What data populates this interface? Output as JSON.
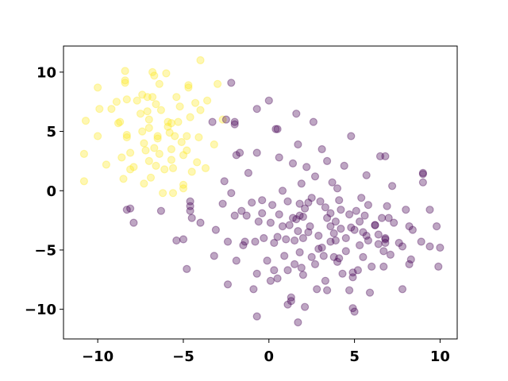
{
  "chart_data": {
    "type": "scatter",
    "title": "",
    "xlabel": "",
    "ylabel": "",
    "xlim": [
      -12,
      11
    ],
    "ylim": [
      -12.5,
      12.2
    ],
    "xticks": [
      -10,
      -5,
      0,
      5,
      10
    ],
    "yticks": [
      -10,
      -5,
      0,
      5,
      10
    ],
    "xtick_labels": [
      "−10",
      "−5",
      "0",
      "5",
      "10"
    ],
    "ytick_labels": [
      "−10",
      "−5",
      "0",
      "5",
      "10"
    ],
    "grid": false,
    "legend": "none",
    "marker_opacity": 0.35,
    "series": [
      {
        "color": "#fde725",
        "points": [
          [
            -10.7,
            5.9
          ],
          [
            -10.8,
            3.1
          ],
          [
            -10.8,
            0.8
          ],
          [
            -10.0,
            8.7
          ],
          [
            -9.9,
            6.9
          ],
          [
            -10.0,
            4.6
          ],
          [
            -9.5,
            2.2
          ],
          [
            -9.2,
            6.9
          ],
          [
            -8.9,
            7.5
          ],
          [
            -8.8,
            5.7
          ],
          [
            -8.7,
            5.8
          ],
          [
            -8.6,
            2.8
          ],
          [
            -8.5,
            1.0
          ],
          [
            -8.4,
            10.1
          ],
          [
            -8.4,
            9.1
          ],
          [
            -8.4,
            9.3
          ],
          [
            -8.3,
            7.7
          ],
          [
            -8.3,
            4.7
          ],
          [
            -8.3,
            4.5
          ],
          [
            -8.1,
            3.2
          ],
          [
            -8.1,
            1.8
          ],
          [
            -7.9,
            2.0
          ],
          [
            -7.7,
            7.6
          ],
          [
            -7.5,
            6.5
          ],
          [
            -7.4,
            8.1
          ],
          [
            -7.4,
            5.0
          ],
          [
            -7.3,
            4.0
          ],
          [
            -7.3,
            0.6
          ],
          [
            -7.2,
            3.4
          ],
          [
            -7.1,
            7.9
          ],
          [
            -7.1,
            6.7
          ],
          [
            -7.0,
            6.0
          ],
          [
            -7.0,
            5.3
          ],
          [
            -7.0,
            2.5
          ],
          [
            -6.9,
            1.1
          ],
          [
            -6.8,
            10.0
          ],
          [
            -6.8,
            7.9
          ],
          [
            -6.7,
            9.7
          ],
          [
            -6.7,
            3.6
          ],
          [
            -6.6,
            2.1
          ],
          [
            -6.6,
            7.3
          ],
          [
            -6.5,
            4.4
          ],
          [
            -6.5,
            4.6
          ],
          [
            -6.4,
            9.0
          ],
          [
            -6.4,
            3.1
          ],
          [
            -6.3,
            6.8
          ],
          [
            -6.2,
            -0.2
          ],
          [
            -6.1,
            1.8
          ],
          [
            -6.0,
            9.9
          ],
          [
            -5.9,
            5.8
          ],
          [
            -5.9,
            5.4
          ],
          [
            -5.8,
            4.9
          ],
          [
            -5.7,
            5.7
          ],
          [
            -5.7,
            3.5
          ],
          [
            -5.7,
            2.6
          ],
          [
            -5.6,
            1.9
          ],
          [
            -5.6,
            -0.2
          ],
          [
            -5.5,
            4.6
          ],
          [
            -5.4,
            7.9
          ],
          [
            -5.3,
            5.8
          ],
          [
            -5.2,
            7.1
          ],
          [
            -5.1,
            4.1
          ],
          [
            -5.0,
            3.0
          ],
          [
            -5.0,
            0.5
          ],
          [
            -5.0,
            0.2
          ],
          [
            -4.8,
            4.6
          ],
          [
            -4.8,
            3.4
          ],
          [
            -4.7,
            8.9
          ],
          [
            -4.7,
            8.7
          ],
          [
            -4.6,
            6.2
          ],
          [
            -4.5,
            1.6
          ],
          [
            -4.3,
            7.4
          ],
          [
            -4.2,
            2.4
          ],
          [
            -4.1,
            4.5
          ],
          [
            -4.0,
            11.0
          ],
          [
            -4.0,
            6.8
          ],
          [
            -3.7,
            1.9
          ],
          [
            -3.6,
            7.6
          ],
          [
            -3.2,
            3.9
          ],
          [
            -3.0,
            9.0
          ],
          [
            -2.7,
            6.0
          ]
        ]
      },
      {
        "color": "#440154",
        "points": [
          [
            -8.1,
            -1.5
          ],
          [
            -8.3,
            -1.6
          ],
          [
            -7.9,
            -2.7
          ],
          [
            -6.3,
            -1.7
          ],
          [
            -5.4,
            -4.2
          ],
          [
            -5.0,
            -4.1
          ],
          [
            -4.8,
            -6.6
          ],
          [
            -4.6,
            -0.9
          ],
          [
            -4.6,
            -1.3
          ],
          [
            -4.6,
            -1.7
          ],
          [
            -4.5,
            -2.3
          ],
          [
            -4.0,
            -2.7
          ],
          [
            -3.3,
            5.8
          ],
          [
            -3.2,
            -5.5
          ],
          [
            -3.1,
            -3.3
          ],
          [
            -2.7,
            -1.1
          ],
          [
            -2.6,
            0.8
          ],
          [
            -2.5,
            6.0
          ],
          [
            -2.4,
            -7.9
          ],
          [
            -2.4,
            -4.3
          ],
          [
            -2.2,
            9.1
          ],
          [
            -2.2,
            -0.2
          ],
          [
            -2.0,
            5.6
          ],
          [
            -2.0,
            5.8
          ],
          [
            -2.0,
            -2.1
          ],
          [
            -1.9,
            -5.9
          ],
          [
            -1.9,
            3.0
          ],
          [
            -1.7,
            3.2
          ],
          [
            -1.6,
            -1.7
          ],
          [
            -1.5,
            -4.6
          ],
          [
            -1.4,
            -4.3
          ],
          [
            -1.3,
            -2.1
          ],
          [
            -1.2,
            1.5
          ],
          [
            -1.0,
            -1.0
          ],
          [
            -0.9,
            -8.3
          ],
          [
            -0.8,
            -4.3
          ],
          [
            -0.7,
            -10.6
          ],
          [
            -0.7,
            6.9
          ],
          [
            -0.7,
            -7.0
          ],
          [
            -0.7,
            3.2
          ],
          [
            -0.6,
            -2.6
          ],
          [
            -0.4,
            -0.8
          ],
          [
            -0.4,
            -1.9
          ],
          [
            -0.3,
            -4.0
          ],
          [
            -0.1,
            -5.9
          ],
          [
            0.0,
            7.6
          ],
          [
            0.1,
            -7.6
          ],
          [
            0.1,
            -2.7
          ],
          [
            0.2,
            -1.2
          ],
          [
            0.3,
            -4.4
          ],
          [
            0.3,
            -6.7
          ],
          [
            0.4,
            5.2
          ],
          [
            0.5,
            5.2
          ],
          [
            0.5,
            -7.4
          ],
          [
            0.5,
            -3.9
          ],
          [
            0.6,
            -2.0
          ],
          [
            0.6,
            2.8
          ],
          [
            0.8,
            -3.0
          ],
          [
            0.8,
            0.0
          ],
          [
            0.9,
            -5.5
          ],
          [
            1.0,
            -4.1
          ],
          [
            1.1,
            -0.9
          ],
          [
            1.1,
            -6.7
          ],
          [
            1.1,
            -9.6
          ],
          [
            1.2,
            -2.9
          ],
          [
            1.3,
            -9.0
          ],
          [
            1.3,
            -9.3
          ],
          [
            1.4,
            2.3
          ],
          [
            1.4,
            -2.3
          ],
          [
            1.5,
            -4.2
          ],
          [
            1.5,
            -6.2
          ],
          [
            1.6,
            6.5
          ],
          [
            1.6,
            -2.4
          ],
          [
            1.7,
            -11.1
          ],
          [
            1.7,
            -3.4
          ],
          [
            1.7,
            3.9
          ],
          [
            1.8,
            -5.2
          ],
          [
            1.8,
            -2.1
          ],
          [
            1.8,
            -1.1
          ],
          [
            1.9,
            -6.5
          ],
          [
            1.9,
            0.6
          ],
          [
            2.0,
            -4.0
          ],
          [
            2.0,
            -2.2
          ],
          [
            2.0,
            -7.1
          ],
          [
            2.1,
            -1.5
          ],
          [
            2.1,
            -9.8
          ],
          [
            2.2,
            2.0
          ],
          [
            2.3,
            -3.5
          ],
          [
            2.3,
            -1.0
          ],
          [
            2.4,
            -3.0
          ],
          [
            2.5,
            -0.6
          ],
          [
            2.5,
            -5.6
          ],
          [
            2.6,
            5.8
          ],
          [
            2.7,
            1.2
          ],
          [
            2.7,
            -6.2
          ],
          [
            2.8,
            -8.3
          ],
          [
            2.9,
            -4.9
          ],
          [
            2.9,
            -3.8
          ],
          [
            3.0,
            -0.9
          ],
          [
            3.1,
            -4.8
          ],
          [
            3.1,
            3.5
          ],
          [
            3.2,
            -5.5
          ],
          [
            3.3,
            -1.4
          ],
          [
            3.3,
            -7.6
          ],
          [
            3.4,
            -2.3
          ],
          [
            3.4,
            2.5
          ],
          [
            3.4,
            -8.4
          ],
          [
            3.6,
            -3.0
          ],
          [
            3.6,
            -4.3
          ],
          [
            3.6,
            -1.9
          ],
          [
            3.7,
            0.7
          ],
          [
            3.8,
            -3.6
          ],
          [
            3.8,
            -5.6
          ],
          [
            3.9,
            -4.2
          ],
          [
            3.9,
            -2.6
          ],
          [
            4.0,
            -6.0
          ],
          [
            4.0,
            0.2
          ],
          [
            4.1,
            -5.7
          ],
          [
            4.1,
            -0.8
          ],
          [
            4.2,
            -1.6
          ],
          [
            4.2,
            -3.2
          ],
          [
            4.3,
            -7.0
          ],
          [
            4.4,
            2.1
          ],
          [
            4.5,
            -4.0
          ],
          [
            4.5,
            -5.1
          ],
          [
            4.7,
            -2.0
          ],
          [
            4.7,
            -8.4
          ],
          [
            4.8,
            4.6
          ],
          [
            4.8,
            -3.1
          ],
          [
            4.9,
            -6.9
          ],
          [
            4.9,
            -9.9
          ],
          [
            4.9,
            -7.3
          ],
          [
            5.0,
            -10.2
          ],
          [
            5.0,
            -3.3
          ],
          [
            5.1,
            -1.7
          ],
          [
            5.2,
            -6.7
          ],
          [
            5.3,
            -4.6
          ],
          [
            5.3,
            -2.6
          ],
          [
            5.4,
            -0.6
          ],
          [
            5.5,
            -3.5
          ],
          [
            5.5,
            -5.6
          ],
          [
            5.6,
            -2.1
          ],
          [
            5.7,
            1.3
          ],
          [
            5.7,
            -3.8
          ],
          [
            5.8,
            -4.2
          ],
          [
            5.8,
            -1.2
          ],
          [
            5.9,
            -8.6
          ],
          [
            6.0,
            -6.4
          ],
          [
            6.2,
            -2.9
          ],
          [
            6.2,
            -2.9
          ],
          [
            6.4,
            -3.7
          ],
          [
            6.4,
            -4.5
          ],
          [
            6.5,
            2.9
          ],
          [
            6.6,
            -2.3
          ],
          [
            6.7,
            -6.4
          ],
          [
            6.7,
            -5.1
          ],
          [
            6.8,
            -4.4
          ],
          [
            6.8,
            -4.0
          ],
          [
            6.8,
            -4.1
          ],
          [
            6.8,
            2.9
          ],
          [
            6.9,
            -1.3
          ],
          [
            7.0,
            -2.3
          ],
          [
            7.1,
            -5.4
          ],
          [
            7.2,
            0.4
          ],
          [
            7.3,
            -2.7
          ],
          [
            7.6,
            -4.4
          ],
          [
            7.8,
            -8.3
          ],
          [
            7.8,
            -4.7
          ],
          [
            8.0,
            -1.6
          ],
          [
            8.2,
            -3.0
          ],
          [
            8.2,
            -6.2
          ],
          [
            8.3,
            -5.8
          ],
          [
            8.4,
            -3.3
          ],
          [
            8.9,
            -4.3
          ],
          [
            9.0,
            1.4
          ],
          [
            9.0,
            1.5
          ],
          [
            9.4,
            -1.6
          ],
          [
            9.4,
            -4.7
          ],
          [
            9.8,
            -3.0
          ],
          [
            9.9,
            -6.4
          ],
          [
            10.0,
            -4.8
          ],
          [
            9.0,
            0.7
          ]
        ]
      }
    ]
  }
}
